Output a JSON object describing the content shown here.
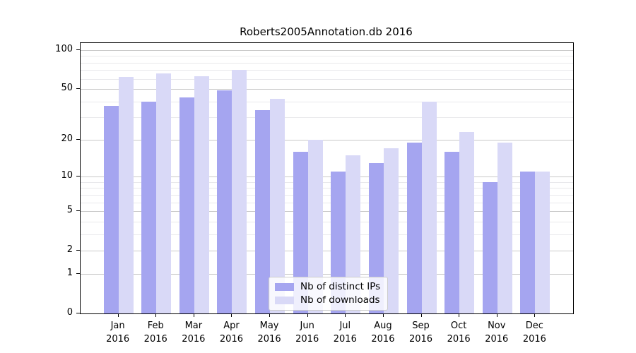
{
  "chart_data": {
    "type": "bar",
    "title": "Roberts2005Annotation.db 2016",
    "categories": [
      "Jan",
      "Feb",
      "Mar",
      "Apr",
      "May",
      "Jun",
      "Jul",
      "Aug",
      "Sep",
      "Oct",
      "Nov",
      "Dec"
    ],
    "x_tick_second_line": "2016",
    "series": [
      {
        "name": "Nb of distinct IPs",
        "color": "#a5a5f0",
        "values": [
          37,
          40,
          43,
          49,
          34,
          16,
          11,
          13,
          19,
          16,
          9,
          11
        ]
      },
      {
        "name": "Nb of downloads",
        "color": "#d9d9f7",
        "values": [
          62,
          66,
          63,
          70,
          42,
          20,
          15,
          17,
          40,
          23,
          19,
          11
        ]
      }
    ],
    "yscale": "log1p",
    "ylim": [
      0,
      113
    ],
    "y_ticks": [
      {
        "label": "100",
        "value": 100
      },
      {
        "label": "50",
        "value": 50
      },
      {
        "label": "20",
        "value": 20
      },
      {
        "label": "10",
        "value": 10
      },
      {
        "label": "5",
        "value": 5
      },
      {
        "label": "2",
        "value": 2
      },
      {
        "label": "1",
        "value": 1
      },
      {
        "label": "0",
        "value": 0
      }
    ],
    "y_minor_ticks": [
      3,
      4,
      6,
      7,
      8,
      9,
      30,
      40,
      60,
      70,
      80,
      90
    ],
    "grid": true,
    "legend_position": "lower center",
    "colors": {
      "major_grid": "#c9c9c9",
      "minor_grid": "#e9e9ec",
      "spine": "#000000",
      "background": "#ffffff"
    }
  }
}
